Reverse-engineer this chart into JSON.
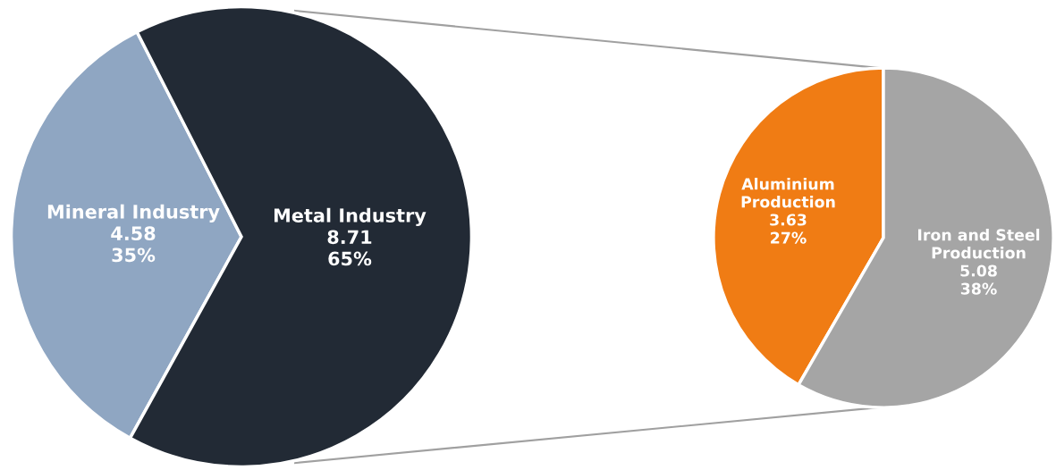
{
  "chart_data": [
    {
      "type": "pie",
      "categories": [
        "Mineral Industry",
        "Metal Industry"
      ],
      "values": [
        4.58,
        8.71
      ],
      "colors": [
        "#8fa6c2",
        "#222a35"
      ],
      "value_labels": [
        "4.58\n35%",
        "8.71\n65%"
      ],
      "data_labels": true
    },
    {
      "type": "pie",
      "categories": [
        "Aluminium\nProduction",
        "Iron and Steel\nProduction"
      ],
      "values": [
        3.63,
        5.08
      ],
      "colors": [
        "#f07c14",
        "#a5a5a5"
      ],
      "value_labels": [
        "3.63\n27%",
        "5.08\n38%"
      ],
      "data_labels": true
    }
  ]
}
